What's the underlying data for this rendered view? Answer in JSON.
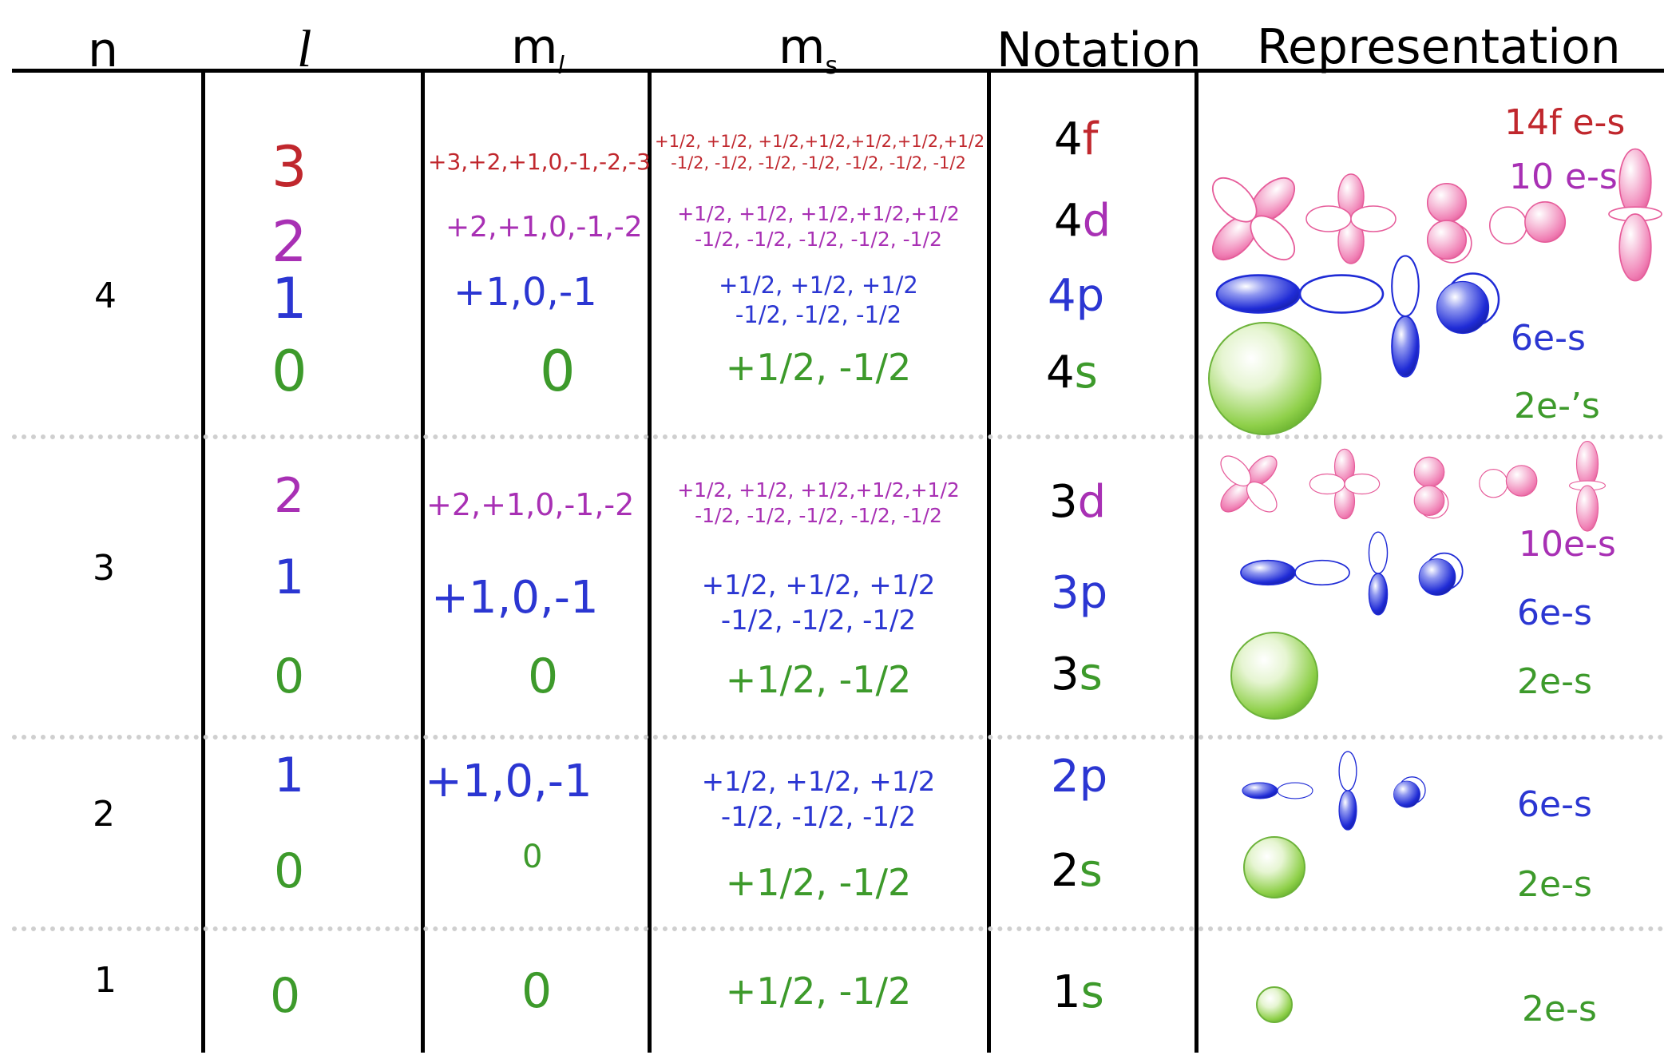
{
  "headers": {
    "n": "n",
    "l": "l",
    "ml_main": "m",
    "ml_sub": "l",
    "ms_main": "m",
    "ms_sub": "s",
    "notation": "Notation",
    "representation": "Representation"
  },
  "shells": {
    "n4": {
      "n": "4",
      "rows": {
        "f": {
          "l": "3",
          "ml": "+3,+2,+1,0,-1,-2,-3",
          "ms1": "+1/2, +1/2, +1/2,+1/2,+1/2,+1/2,+1/2",
          "ms2": "-1/2,  -1/2,  -1/2, -1/2, -1/2,  -1/2, -1/2",
          "notation_n": "4",
          "notation_l": "f",
          "electrons": "14f e-s"
        },
        "d": {
          "l": "2",
          "ml": "+2,+1,0,-1,-2",
          "ms1": "+1/2, +1/2, +1/2,+1/2,+1/2",
          "ms2": "-1/2,  -1/2,  -1/2, -1/2, -1/2",
          "notation_n": "4",
          "notation_l": "d",
          "electrons": "10 e-s"
        },
        "p": {
          "l": "1",
          "ml": "+1,0,-1",
          "ms1": "+1/2, +1/2, +1/2",
          "ms2": "-1/2,  -1/2,  -1/2",
          "notation_n": "4",
          "notation_l": "p",
          "electrons": "6e-s"
        },
        "s": {
          "l": "0",
          "ml": "0",
          "ms1": "+1/2, -1/2",
          "notation_n": "4",
          "notation_l": "s",
          "electrons": "2e-’s"
        }
      }
    },
    "n3": {
      "n": "3",
      "rows": {
        "d": {
          "l": "2",
          "ml": "+2,+1,0,-1,-2",
          "ms1": "+1/2, +1/2, +1/2,+1/2,+1/2",
          "ms2": "-1/2,  -1/2,  -1/2, -1/2, -1/2",
          "notation_n": "3",
          "notation_l": "d",
          "electrons": "10e-s"
        },
        "p": {
          "l": "1",
          "ml": "+1,0,-1",
          "ms1": "+1/2, +1/2, +1/2",
          "ms2": "-1/2,  -1/2,  -1/2",
          "notation_n": "3",
          "notation_l": "p",
          "electrons": "6e-s"
        },
        "s": {
          "l": "0",
          "ml": "0",
          "ms1": "+1/2, -1/2",
          "notation_n": "3",
          "notation_l": "s",
          "electrons": "2e-s"
        }
      }
    },
    "n2": {
      "n": "2",
      "rows": {
        "p": {
          "l": "1",
          "ml": "+1,0,-1",
          "ms1": "+1/2, +1/2, +1/2",
          "ms2": "-1/2,  -1/2,  -1/2",
          "notation_n": "2",
          "notation_l": "p",
          "electrons": "6e-s"
        },
        "s": {
          "l": "0",
          "ml": "0",
          "ms1": "+1/2, -1/2",
          "notation_n": "2",
          "notation_l": "s",
          "electrons": "2e-s"
        }
      }
    },
    "n1": {
      "n": "1",
      "rows": {
        "s": {
          "l": "0",
          "ml": "0",
          "ms1": "+1/2, -1/2",
          "notation_n": "1",
          "notation_l": "s",
          "electrons": "2e-s"
        }
      }
    }
  },
  "colors": {
    "f": "#c0272d",
    "d": "#a830b4",
    "p": "#2b36d2",
    "s": "#3d9a2b",
    "d_orbital_fill": "#f07fb4",
    "p_orbital_fill": "#1f2bd6",
    "s_orbital_fill": "#7cc63c",
    "rule": "#000000",
    "separator": "#cfcfcf"
  },
  "icons": {
    "d_orbital": "d-orbital-lobes-icon",
    "p_orbital": "p-orbital-dumbbell-icon",
    "s_orbital": "s-orbital-sphere-icon"
  }
}
